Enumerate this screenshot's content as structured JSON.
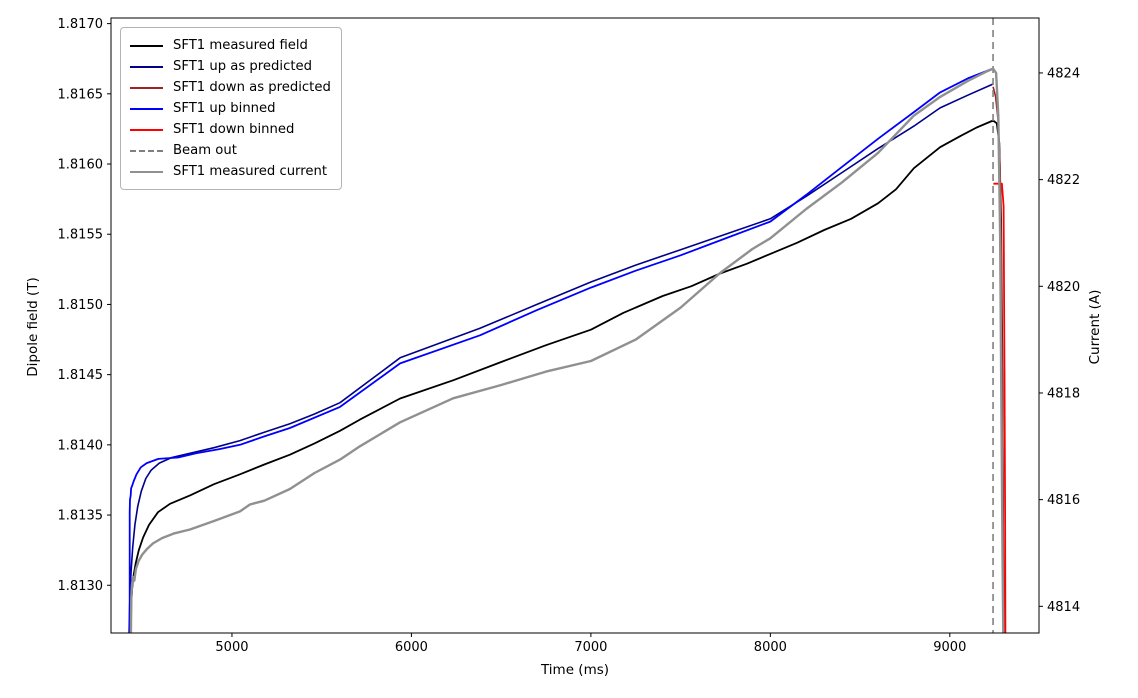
{
  "chart_data": {
    "type": "line",
    "title": "",
    "xlabel": "Time (ms)",
    "ylabel_left": "Dipole field (T)",
    "ylabel_right": "Current (A)",
    "xlim": [
      4326,
      9497
    ],
    "ylim_left": [
      1.81266,
      1.81704
    ],
    "ylim_right": [
      4813.5,
      4825.03
    ],
    "xticks": [
      5000,
      6000,
      7000,
      8000,
      9000
    ],
    "yticks_left": [
      1.813,
      1.8135,
      1.814,
      1.8145,
      1.815,
      1.8155,
      1.816,
      1.8165,
      1.817
    ],
    "yticks_right": [
      4814,
      4816,
      4818,
      4820,
      4822,
      4824
    ],
    "grid": false,
    "legend_position": "upper left",
    "legend": [
      {
        "label": "SFT1 measured field",
        "color": "#000000",
        "dash": false
      },
      {
        "label": "SFT1 up as predicted",
        "color": "#00008b",
        "dash": false
      },
      {
        "label": "SFT1 down as predicted",
        "color": "#9c2424",
        "dash": false
      },
      {
        "label": "SFT1 up binned",
        "color": "#0000ff",
        "dash": false
      },
      {
        "label": "SFT1 down binned",
        "color": "#ff0000",
        "dash": false
      },
      {
        "label": "Beam out",
        "color": "#808080",
        "dash": true
      },
      {
        "label": "SFT1 measured current",
        "color": "#909090",
        "dash": false
      }
    ],
    "beam_out": {
      "label": "Beam out",
      "t": 9241,
      "color": "#808080",
      "dash": true
    },
    "series": [
      {
        "name": "SFT1 measured field",
        "axis": "left",
        "color": "#000000",
        "lw": 1.8,
        "dash": false,
        "points": [
          [
            4437,
            1.81266
          ],
          [
            4439,
            1.81288
          ],
          [
            4444,
            1.81298
          ],
          [
            4452,
            1.81307
          ],
          [
            4464,
            1.81316
          ],
          [
            4481,
            1.81325
          ],
          [
            4505,
            1.81334
          ],
          [
            4538,
            1.81343
          ],
          [
            4588,
            1.81352
          ],
          [
            4655,
            1.81358
          ],
          [
            4766,
            1.81364
          ],
          [
            4900,
            1.81372
          ],
          [
            5045,
            1.81379
          ],
          [
            5180,
            1.81386
          ],
          [
            5323,
            1.81393
          ],
          [
            5460,
            1.81401
          ],
          [
            5602,
            1.8141
          ],
          [
            5713,
            1.81418
          ],
          [
            5937,
            1.81433
          ],
          [
            6232,
            1.81446
          ],
          [
            6500,
            1.81459
          ],
          [
            6750,
            1.81471
          ],
          [
            7000,
            1.81482
          ],
          [
            7180,
            1.81494
          ],
          [
            7400,
            1.81506
          ],
          [
            7560,
            1.81513
          ],
          [
            7720,
            1.81522
          ],
          [
            7870,
            1.81529
          ],
          [
            8000,
            1.81536
          ],
          [
            8150,
            1.81544
          ],
          [
            8300,
            1.81553
          ],
          [
            8450,
            1.81561
          ],
          [
            8600,
            1.81572
          ],
          [
            8700,
            1.81582
          ],
          [
            8800,
            1.81597
          ],
          [
            8946,
            1.81612
          ],
          [
            9060,
            1.8162
          ],
          [
            9150,
            1.81626
          ],
          [
            9241,
            1.81631
          ],
          [
            9262,
            1.81629
          ],
          [
            9276,
            1.81615
          ],
          [
            9286,
            1.8156
          ],
          [
            9292,
            1.8147
          ],
          [
            9296,
            1.8137
          ],
          [
            9300,
            1.81266
          ]
        ]
      },
      {
        "name": "SFT1 up as predicted",
        "axis": "left",
        "color": "#00008b",
        "lw": 1.6,
        "dash": false,
        "points": [
          [
            4427,
            1.81266
          ],
          [
            4429,
            1.81281
          ],
          [
            4432,
            1.81294
          ],
          [
            4438,
            1.8131
          ],
          [
            4447,
            1.81327
          ],
          [
            4459,
            1.81343
          ],
          [
            4475,
            1.81356
          ],
          [
            4495,
            1.81367
          ],
          [
            4520,
            1.81376
          ],
          [
            4550,
            1.81382
          ],
          [
            4595,
            1.81387
          ],
          [
            4665,
            1.81391
          ],
          [
            4766,
            1.81394
          ],
          [
            4900,
            1.81398
          ],
          [
            5045,
            1.81403
          ],
          [
            5180,
            1.81409
          ],
          [
            5323,
            1.81415
          ],
          [
            5460,
            1.81422
          ],
          [
            5602,
            1.8143
          ],
          [
            5937,
            1.81462
          ],
          [
            6382,
            1.81483
          ],
          [
            6700,
            1.815
          ],
          [
            7000,
            1.81516
          ],
          [
            7250,
            1.81528
          ],
          [
            7500,
            1.81539
          ],
          [
            7750,
            1.8155
          ],
          [
            8000,
            1.81561
          ],
          [
            8200,
            1.81577
          ],
          [
            8400,
            1.81594
          ],
          [
            8600,
            1.81611
          ],
          [
            8800,
            1.81627
          ],
          [
            8946,
            1.8164
          ],
          [
            9100,
            1.81649
          ],
          [
            9241,
            1.81657
          ]
        ]
      },
      {
        "name": "SFT1 down as predicted",
        "axis": "left",
        "color": "#9c2424",
        "lw": 1.6,
        "dash": false,
        "points": [
          [
            9241,
            1.81655
          ],
          [
            9255,
            1.81648
          ],
          [
            9270,
            1.8163
          ],
          [
            9280,
            1.81595
          ],
          [
            9287,
            1.8153
          ],
          [
            9293,
            1.8144
          ],
          [
            9298,
            1.8133
          ],
          [
            9302,
            1.81266
          ]
        ]
      },
      {
        "name": "SFT1 up binned",
        "axis": "left",
        "color": "#0000ff",
        "lw": 1.8,
        "dash": false,
        "points": [
          [
            4430,
            1.81266
          ],
          [
            4430,
            1.81352
          ],
          [
            4432,
            1.81361
          ],
          [
            4436,
            1.81364
          ],
          [
            4438,
            1.81369
          ],
          [
            4444,
            1.81371
          ],
          [
            4452,
            1.81374
          ],
          [
            4468,
            1.81379
          ],
          [
            4492,
            1.81384
          ],
          [
            4525,
            1.81387
          ],
          [
            4590,
            1.8139
          ],
          [
            4700,
            1.81391
          ],
          [
            4800,
            1.81394
          ],
          [
            4930,
            1.81397
          ],
          [
            5045,
            1.814
          ],
          [
            5180,
            1.81406
          ],
          [
            5323,
            1.81412
          ],
          [
            5602,
            1.81427
          ],
          [
            5937,
            1.81458
          ],
          [
            6382,
            1.81478
          ],
          [
            6700,
            1.81496
          ],
          [
            7000,
            1.81512
          ],
          [
            7250,
            1.81524
          ],
          [
            7500,
            1.81535
          ],
          [
            7750,
            1.81547
          ],
          [
            8000,
            1.81559
          ],
          [
            8200,
            1.81578
          ],
          [
            8400,
            1.81598
          ],
          [
            8600,
            1.81618
          ],
          [
            8800,
            1.81637
          ],
          [
            8946,
            1.81651
          ],
          [
            9100,
            1.81661
          ],
          [
            9241,
            1.81668
          ]
        ]
      },
      {
        "name": "SFT1 down binned",
        "axis": "left",
        "color": "#ff0000",
        "lw": 1.8,
        "dash": false,
        "points": [
          [
            9243,
            1.81586
          ],
          [
            9290,
            1.81586
          ],
          [
            9300,
            1.8157
          ],
          [
            9305,
            1.8145
          ],
          [
            9308,
            1.8135
          ],
          [
            9310,
            1.81266
          ]
        ]
      },
      {
        "name": "SFT1 measured current",
        "axis": "right",
        "color": "#909090",
        "lw": 2.4,
        "dash": false,
        "points": [
          [
            4437,
            4813.5
          ],
          [
            4439,
            4814.15
          ],
          [
            4443,
            4814.4
          ],
          [
            4450,
            4814.55
          ],
          [
            4456,
            4814.48
          ],
          [
            4465,
            4814.7
          ],
          [
            4480,
            4814.85
          ],
          [
            4500,
            4814.97
          ],
          [
            4525,
            4815.07
          ],
          [
            4560,
            4815.18
          ],
          [
            4610,
            4815.28
          ],
          [
            4680,
            4815.37
          ],
          [
            4766,
            4815.44
          ],
          [
            4900,
            4815.6
          ],
          [
            5045,
            4815.78
          ],
          [
            5100,
            4815.91
          ],
          [
            5180,
            4815.98
          ],
          [
            5323,
            4816.2
          ],
          [
            5460,
            4816.5
          ],
          [
            5602,
            4816.75
          ],
          [
            5713,
            4817.0
          ],
          [
            5937,
            4817.45
          ],
          [
            6232,
            4817.9
          ],
          [
            6500,
            4818.15
          ],
          [
            6750,
            4818.4
          ],
          [
            7000,
            4818.6
          ],
          [
            7250,
            4819.0
          ],
          [
            7500,
            4819.6
          ],
          [
            7720,
            4820.25
          ],
          [
            7900,
            4820.7
          ],
          [
            8000,
            4820.9
          ],
          [
            8200,
            4821.45
          ],
          [
            8400,
            4821.95
          ],
          [
            8600,
            4822.5
          ],
          [
            8800,
            4823.2
          ],
          [
            8946,
            4823.55
          ],
          [
            9100,
            4823.85
          ],
          [
            9200,
            4824.02
          ],
          [
            9241,
            4824.08
          ],
          [
            9258,
            4824.0
          ],
          [
            9270,
            4823.2
          ],
          [
            9280,
            4821.0
          ],
          [
            9288,
            4817.5
          ],
          [
            9294,
            4814.8
          ],
          [
            9298,
            4813.5
          ]
        ]
      }
    ]
  }
}
